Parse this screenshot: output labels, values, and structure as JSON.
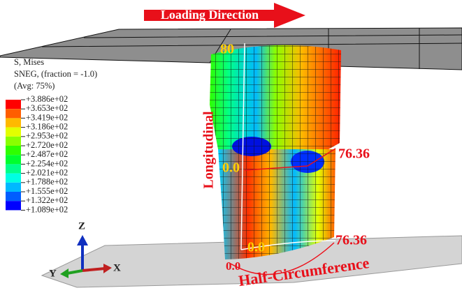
{
  "loading_direction": "Loading Direction",
  "legend": {
    "title": [
      "S, Mises",
      "SNEG, (fraction = -1.0)",
      "(Avg: 75%)"
    ],
    "labels": [
      "+3.886e+02",
      "+3.653e+02",
      "+3.419e+02",
      "+3.186e+02",
      "+2.953e+02",
      "+2.720e+02",
      "+2.487e+02",
      "+2.254e+02",
      "+2.021e+02",
      "+1.788e+02",
      "+1.555e+02",
      "+1.322e+02",
      "+1.089e+02"
    ],
    "colors": [
      "#ff0000",
      "#ff5d00",
      "#ffb900",
      "#e3ff00",
      "#8aff00",
      "#2eff00",
      "#00ff2e",
      "#00ff8a",
      "#00ffe3",
      "#00b9ff",
      "#005dff",
      "#0000ff"
    ]
  },
  "annotations": {
    "top": "80",
    "right_mid": "76.36",
    "left_mid": "0.0",
    "bottom_inner": "0.0",
    "right_bottom": "76.36",
    "bottom_outer": "0.0",
    "longitudinal": "Longitudinal",
    "circumference": "Half-Circumference"
  },
  "axes": {
    "z": "Z",
    "y": "Y",
    "x": "X"
  }
}
